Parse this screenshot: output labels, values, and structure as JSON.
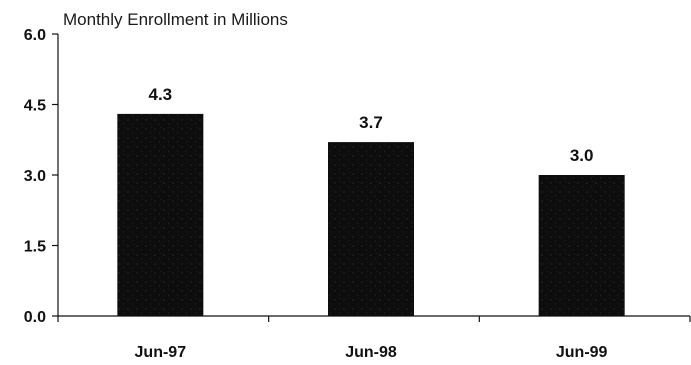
{
  "chart_data": {
    "type": "bar",
    "title": "Monthly Enrollment in Millions",
    "categories": [
      "Jun-97",
      "Jun-98",
      "Jun-99"
    ],
    "values": [
      4.3,
      3.7,
      3.0
    ],
    "data_labels": [
      "4.3",
      "3.7",
      "3.0"
    ],
    "ylim": [
      0,
      6
    ],
    "yticks": [
      "0.0",
      "1.5",
      "3.0",
      "4.5",
      "6.0"
    ],
    "ytick_values": [
      0,
      1.5,
      3.0,
      4.5,
      6.0
    ],
    "xlabel": "",
    "ylabel": "",
    "grid": false,
    "bar_color": "#0d0d0d"
  }
}
